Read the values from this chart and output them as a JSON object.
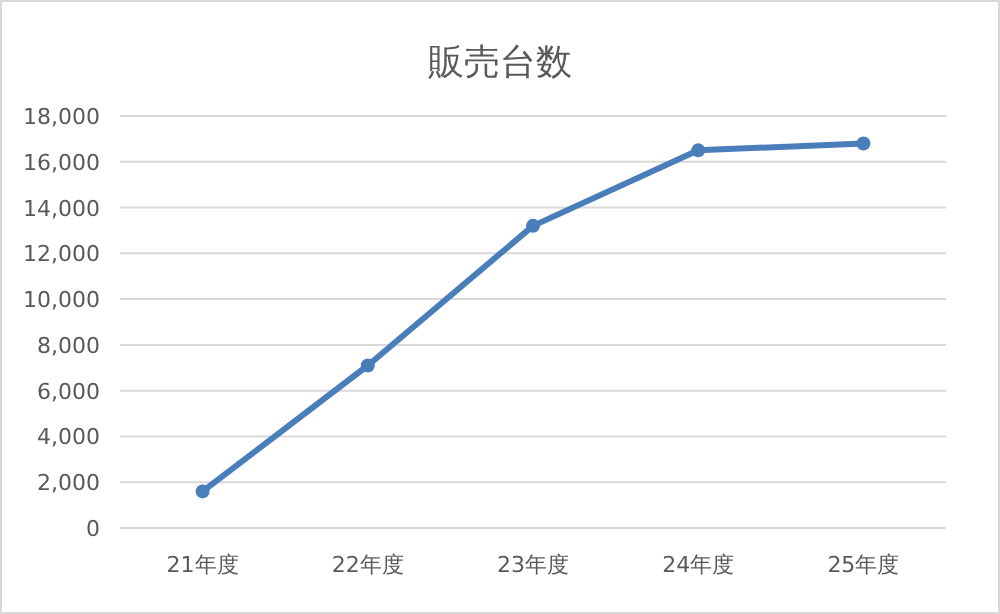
{
  "chart_data": {
    "type": "line",
    "title": "販売台数",
    "categories": [
      "21年度",
      "22年度",
      "23年度",
      "24年度",
      "25年度"
    ],
    "series": [
      {
        "color": "#4a7ebb",
        "values": [
          1600,
          7100,
          13200,
          16500,
          16800
        ]
      }
    ],
    "ylim": [
      0,
      18000
    ],
    "yticks": [
      {
        "value": 0,
        "label": "0"
      },
      {
        "value": 2000,
        "label": "2,000"
      },
      {
        "value": 4000,
        "label": "4,000"
      },
      {
        "value": 6000,
        "label": "6,000"
      },
      {
        "value": 8000,
        "label": "8,000"
      },
      {
        "value": 10000,
        "label": "10,000"
      },
      {
        "value": 12000,
        "label": "12,000"
      },
      {
        "value": 14000,
        "label": "14,000"
      },
      {
        "value": 16000,
        "label": "16,000"
      },
      {
        "value": 18000,
        "label": "18,000"
      }
    ],
    "grid": "y",
    "marker": "circle",
    "line_style": "solid"
  }
}
